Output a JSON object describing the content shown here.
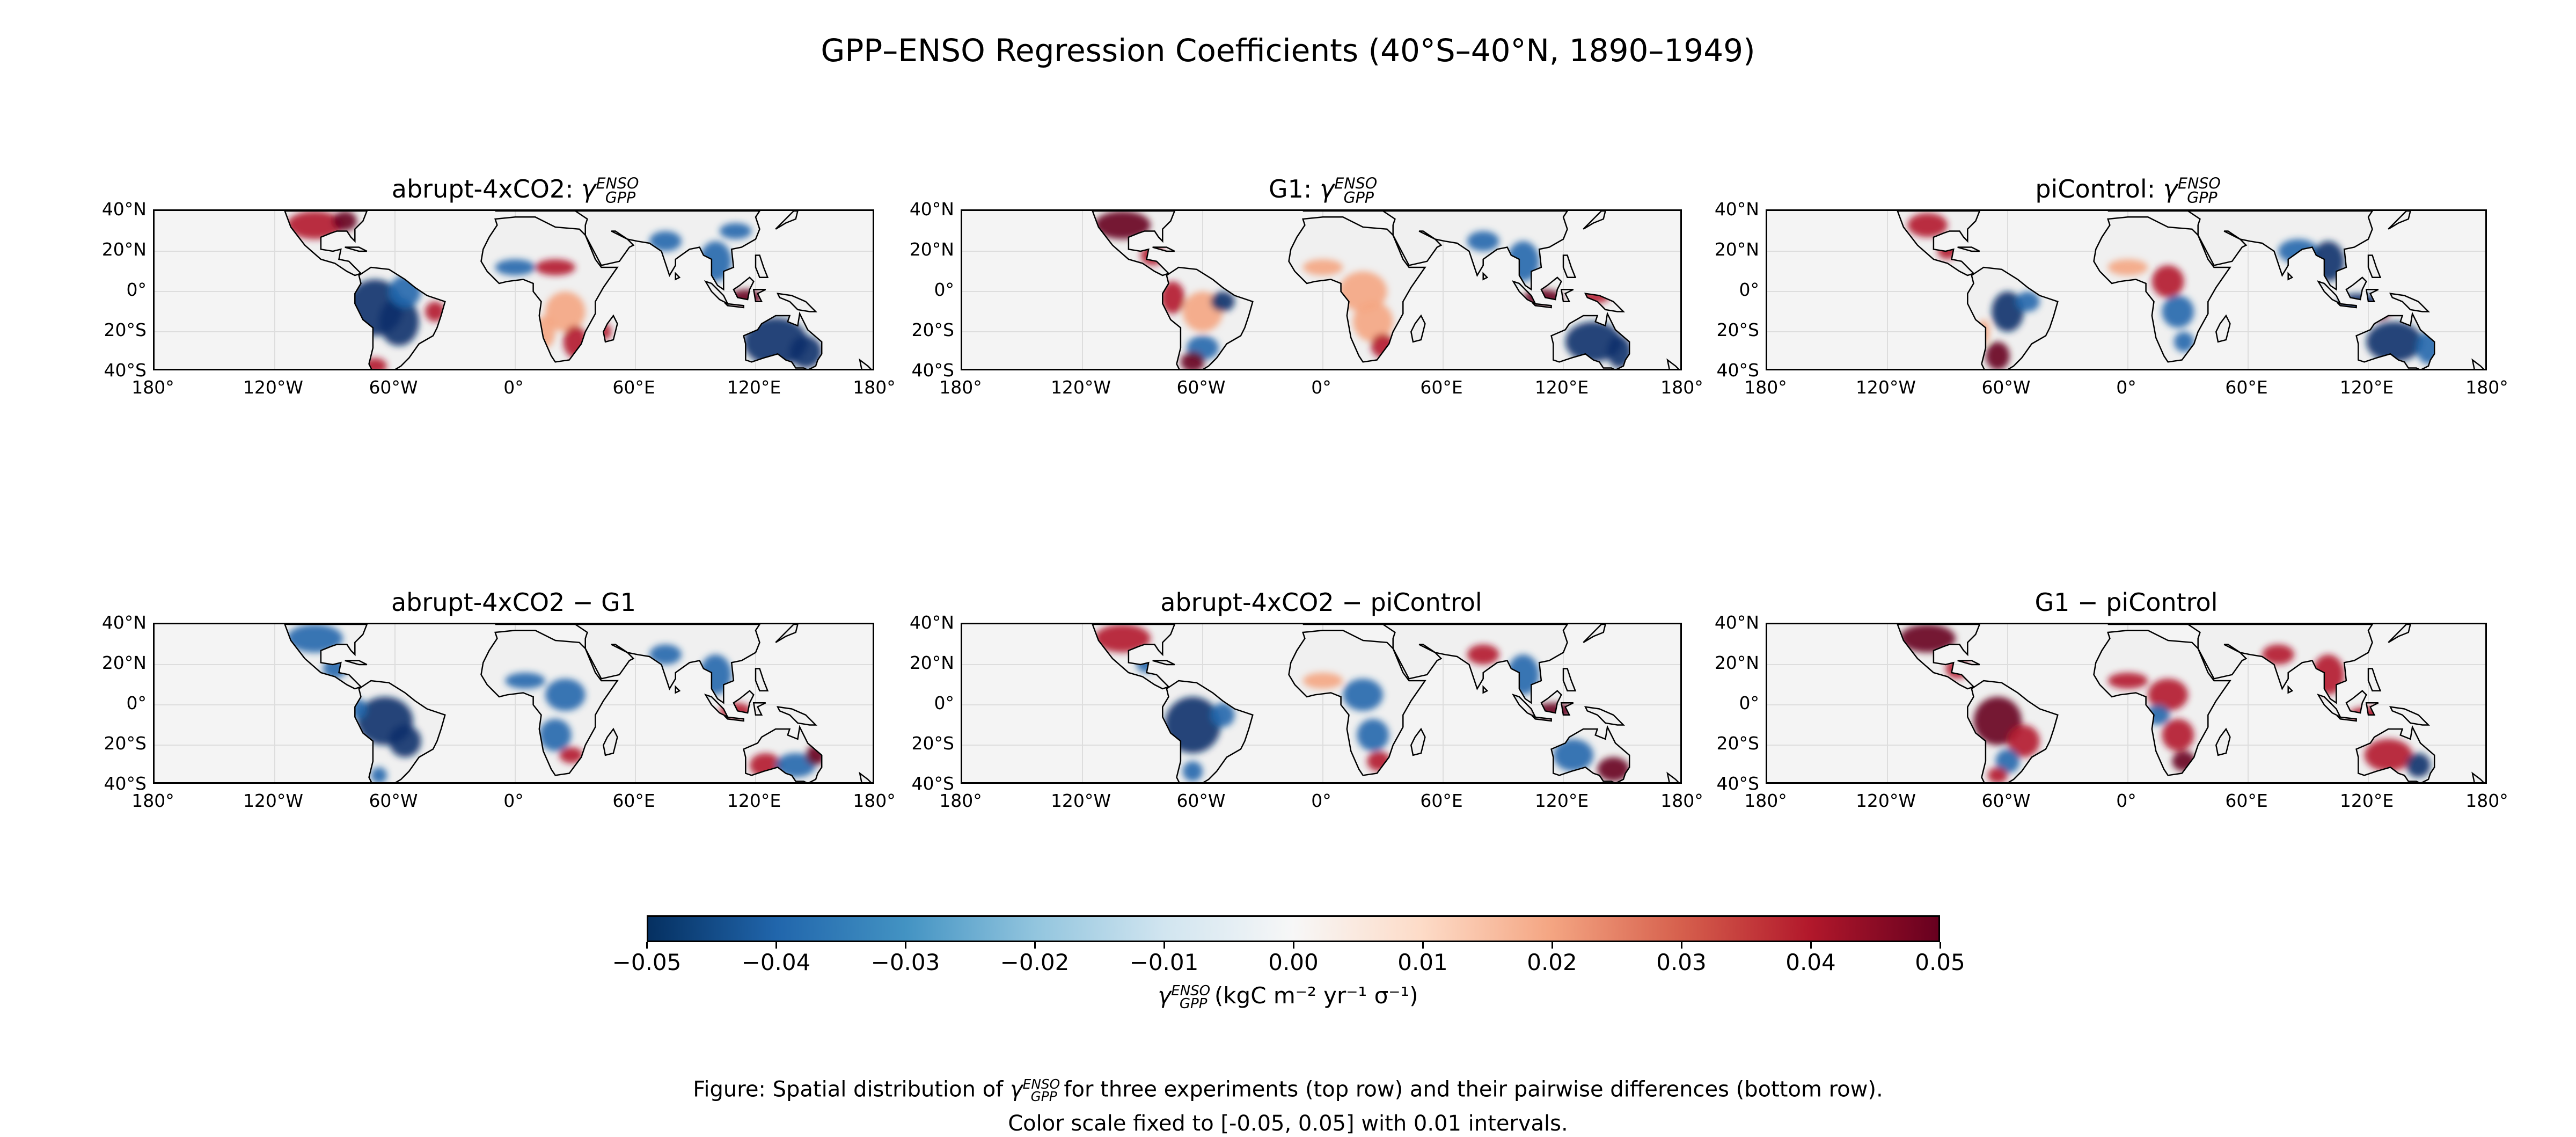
{
  "figure": {
    "title": "GPP–ENSO Regression Coefficients (40°S–40°N, 1890–1949)"
  },
  "panels": [
    {
      "title_prefix": "abrupt-4xCO2: ",
      "symbol": "γ",
      "sub": "GPP",
      "sup": "ENSO"
    },
    {
      "title_prefix": "G1: ",
      "symbol": "γ",
      "sub": "GPP",
      "sup": "ENSO"
    },
    {
      "title_prefix": "piControl: ",
      "symbol": "γ",
      "sub": "GPP",
      "sup": "ENSO"
    },
    {
      "title_prefix": "abrupt-4xCO2 − G1",
      "symbol": "",
      "sub": "",
      "sup": ""
    },
    {
      "title_prefix": "abrupt-4xCO2 − piControl",
      "symbol": "",
      "sub": "",
      "sup": ""
    },
    {
      "title_prefix": "G1 − piControl",
      "symbol": "",
      "sub": "",
      "sup": ""
    }
  ],
  "axes": {
    "y_ticks": [
      "40°N",
      "20°N",
      "0°",
      "20°S",
      "40°S"
    ],
    "x_ticks": [
      "180°",
      "120°W",
      "60°W",
      "0°",
      "60°E",
      "120°E",
      "180°"
    ]
  },
  "colorbar": {
    "ticks": [
      "−0.05",
      "−0.04",
      "−0.03",
      "−0.02",
      "−0.01",
      "0.00",
      "0.01",
      "0.02",
      "0.03",
      "0.04",
      "0.05"
    ],
    "range": [
      -0.05,
      0.05
    ],
    "colormap": "RdBu_r",
    "label_symbol": "γ",
    "label_sub": "GPP",
    "label_sup": "ENSO",
    "label_units": " (kgC m⁻² yr⁻¹ σ⁻¹)"
  },
  "caption": {
    "line1_a": "Figure: Spatial distribution of ",
    "line1_symbol": "γ",
    "line1_sub": "GPP",
    "line1_sup": "ENSO",
    "line1_b": " for three experiments (top row) and their pairwise differences (bottom row).",
    "line2": "Color scale fixed to [-0.05, 0.05] with 0.01 intervals."
  },
  "colors": {
    "strong_blue": "#08306b",
    "blue": "#2166ac",
    "light_blue": "#92c5de",
    "neutral": "#f4f4f4",
    "light_red": "#f4a582",
    "red": "#b2182b",
    "strong_red": "#67001f"
  }
}
